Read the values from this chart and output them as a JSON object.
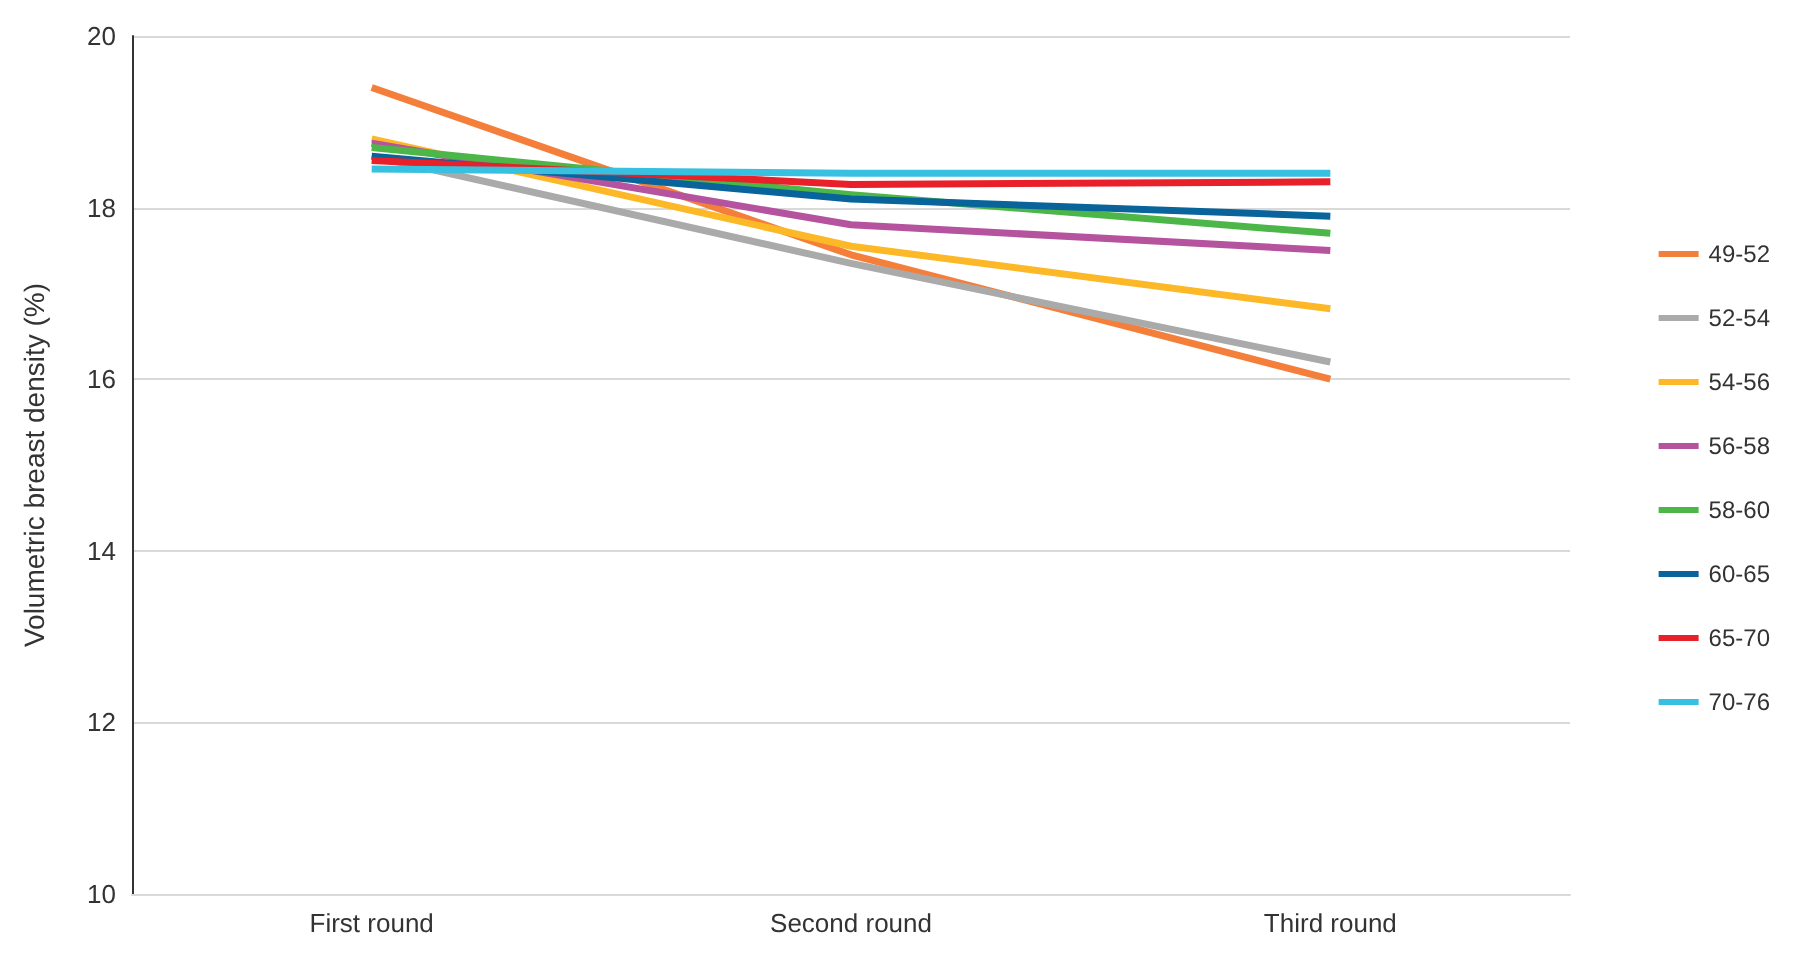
{
  "chart_data": {
    "type": "line",
    "ylabel": "Volumetric breast density (%)",
    "categories": [
      "First round",
      "Second round",
      "Third round"
    ],
    "series": [
      {
        "name": "49-52",
        "color": "#f47f3b",
        "values": [
          19.4,
          17.45,
          16.0
        ]
      },
      {
        "name": "52-54",
        "color": "#aaaaaa",
        "values": [
          18.6,
          17.35,
          16.2
        ]
      },
      {
        "name": "54-56",
        "color": "#fdb827",
        "values": [
          18.8,
          17.55,
          16.82
        ]
      },
      {
        "name": "56-58",
        "color": "#b5539e",
        "values": [
          18.75,
          17.8,
          17.5
        ]
      },
      {
        "name": "58-60",
        "color": "#4cb648",
        "values": [
          18.7,
          18.15,
          17.7
        ]
      },
      {
        "name": "60-65",
        "color": "#08649a",
        "values": [
          18.6,
          18.1,
          17.9
        ]
      },
      {
        "name": "65-70",
        "color": "#e8202a",
        "values": [
          18.55,
          18.27,
          18.3
        ]
      },
      {
        "name": "70-76",
        "color": "#38c0e0",
        "values": [
          18.45,
          18.4,
          18.4
        ]
      }
    ],
    "ylim": [
      10,
      20
    ],
    "yticks": [
      10,
      12,
      14,
      16,
      18,
      20
    ],
    "grid": "y",
    "legend": "right",
    "marker": "none",
    "line_style": "solid"
  }
}
